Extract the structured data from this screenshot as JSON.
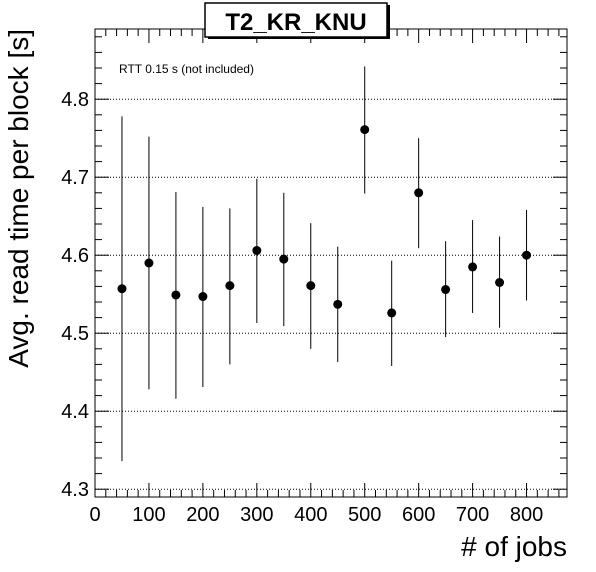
{
  "chart_data": {
    "type": "scatter",
    "title": "T2_KR_KNU",
    "xlabel": "# of jobs",
    "ylabel": "Avg. read time per block [s]",
    "annotation": "RTT 0.15 s (not included)",
    "xlim": [
      0,
      875
    ],
    "ylim": [
      4.29,
      4.89
    ],
    "xticks": [
      0,
      100,
      200,
      300,
      400,
      500,
      600,
      700,
      800
    ],
    "yticks": [
      4.3,
      4.4,
      4.5,
      4.6,
      4.7,
      4.8
    ],
    "ytick_labels": [
      "4.3",
      "4.4",
      "4.5",
      "4.6",
      "4.7",
      "4.8"
    ],
    "grid": "horizontal dotted",
    "marker_color": "#000000",
    "points": [
      {
        "x": 50,
        "y": 4.557,
        "err_low": 4.336,
        "err_high": 4.778
      },
      {
        "x": 100,
        "y": 4.59,
        "err_low": 4.428,
        "err_high": 4.752
      },
      {
        "x": 150,
        "y": 4.549,
        "err_low": 4.416,
        "err_high": 4.681
      },
      {
        "x": 200,
        "y": 4.547,
        "err_low": 4.431,
        "err_high": 4.662
      },
      {
        "x": 250,
        "y": 4.561,
        "err_low": 4.46,
        "err_high": 4.66
      },
      {
        "x": 300,
        "y": 4.606,
        "err_low": 4.513,
        "err_high": 4.698
      },
      {
        "x": 350,
        "y": 4.595,
        "err_low": 4.509,
        "err_high": 4.68
      },
      {
        "x": 400,
        "y": 4.561,
        "err_low": 4.48,
        "err_high": 4.641
      },
      {
        "x": 450,
        "y": 4.537,
        "err_low": 4.463,
        "err_high": 4.611
      },
      {
        "x": 500,
        "y": 4.761,
        "err_low": 4.679,
        "err_high": 4.842
      },
      {
        "x": 550,
        "y": 4.526,
        "err_low": 4.458,
        "err_high": 4.593
      },
      {
        "x": 600,
        "y": 4.68,
        "err_low": 4.609,
        "err_high": 4.75
      },
      {
        "x": 650,
        "y": 4.556,
        "err_low": 4.495,
        "err_high": 4.618
      },
      {
        "x": 700,
        "y": 4.585,
        "err_low": 4.526,
        "err_high": 4.645
      },
      {
        "x": 750,
        "y": 4.565,
        "err_low": 4.507,
        "err_high": 4.624
      },
      {
        "x": 800,
        "y": 4.6,
        "err_low": 4.542,
        "err_high": 4.658
      }
    ]
  }
}
